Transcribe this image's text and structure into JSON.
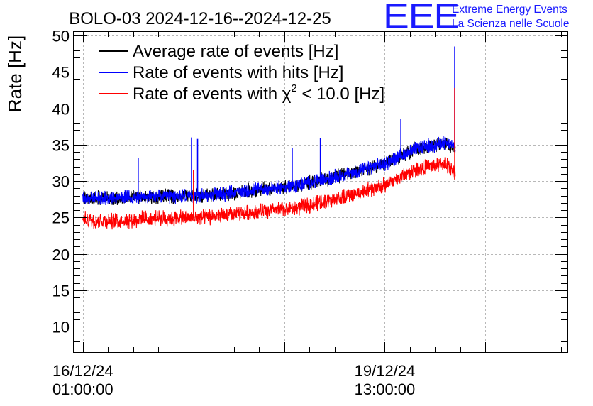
{
  "chart_data": {
    "type": "line",
    "title": "BOLO-03 2024-12-16--2024-12-25",
    "ylabel": "Rate [Hz]",
    "xlabel": "",
    "ylim": [
      6.5,
      50.5
    ],
    "yticks": [
      10,
      15,
      20,
      25,
      30,
      35,
      40,
      45,
      50
    ],
    "xlim_hours": [
      -1.8,
      96.3
    ],
    "x_tick_labels": [
      {
        "hours": 0,
        "date": "16/12/24",
        "time": "01:00:00"
      },
      {
        "hours": 60,
        "date": "19/12/24",
        "time": "13:00:00"
      }
    ],
    "x_unlabeled_ticks_hours": [
      20,
      40,
      80
    ],
    "x": [
      0,
      6,
      12,
      18,
      24,
      30,
      36,
      42,
      48,
      54,
      60,
      66,
      72,
      74
    ],
    "series": [
      {
        "name": "Average rate of events [Hz]",
        "color": "#000000",
        "values": [
          27.6,
          27.7,
          27.8,
          27.9,
          28.0,
          28.4,
          28.9,
          29.3,
          30.2,
          31.2,
          32.4,
          34.4,
          35.3,
          34.5
        ]
      },
      {
        "name": "Rate of events with hits [Hz]",
        "color": "#0000ff",
        "values": [
          27.6,
          27.7,
          27.8,
          27.9,
          28.0,
          28.4,
          28.9,
          29.3,
          30.2,
          31.2,
          32.4,
          34.4,
          35.3,
          34.5
        ]
      },
      {
        "name": "Rate of events with χ² < 10.0 [Hz]",
        "color": "#ff0000",
        "values": [
          24.7,
          24.5,
          24.8,
          24.9,
          25.0,
          25.4,
          25.9,
          26.3,
          27.2,
          28.2,
          29.4,
          31.6,
          32.4,
          31.2
        ]
      }
    ],
    "spikes": [
      {
        "series": 1,
        "x": 11,
        "value": 33.2
      },
      {
        "series": 1,
        "x": 21.6,
        "value": 36.0
      },
      {
        "series": 1,
        "x": 22.8,
        "value": 35.8
      },
      {
        "series": 1,
        "x": 41.6,
        "value": 34.6
      },
      {
        "series": 1,
        "x": 47.2,
        "value": 35.9
      },
      {
        "series": 1,
        "x": 63.2,
        "value": 38.5
      },
      {
        "series": 1,
        "x": 73.9,
        "value": 48.5
      },
      {
        "series": 2,
        "x": 22.0,
        "value": 31.5
      },
      {
        "series": 2,
        "x": 73.9,
        "value": 42.8
      }
    ],
    "legend_position": "top-left",
    "legend": [
      {
        "prefix": "Average rate of events [Hz]",
        "sup": "",
        "suffix": "",
        "color": "#000000"
      },
      {
        "prefix": "Rate of events with hits [Hz]",
        "sup": "",
        "suffix": "",
        "color": "#0000ff"
      },
      {
        "prefix": "Rate of events with χ",
        "sup": "2",
        "suffix": " < 10.0 [Hz]",
        "color": "#ff0000"
      }
    ],
    "grid": true
  },
  "logo": {
    "mark": "EEE",
    "line1": "Extreme Energy Events",
    "line2": "La Scienza nelle Scuole",
    "color": "#1a1aff"
  }
}
